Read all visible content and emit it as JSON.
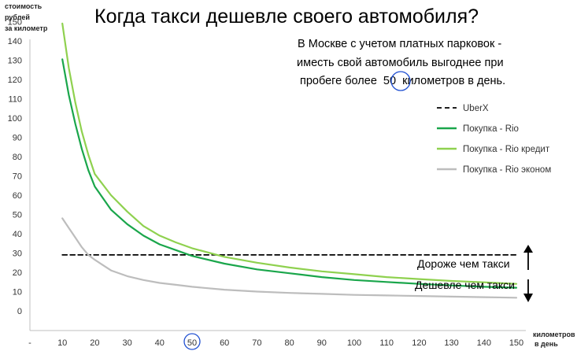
{
  "chart_data": {
    "type": "line",
    "title": "Когда такси дешевле своего автомобиля?",
    "annotation_lines": [
      "В Москве с учетом платных парковок -",
      "иместь свой автомобиль выгоднее при",
      "пробеге более",
      "50",
      "километров в день."
    ],
    "ylabel_lines": [
      "стоимость",
      "рублей",
      "за километр"
    ],
    "xlabel_lines": [
      "километров",
      "в день"
    ],
    "ylim": [
      0,
      150
    ],
    "y_ticks": [
      0,
      10,
      20,
      30,
      40,
      50,
      60,
      70,
      80,
      90,
      100,
      110,
      120,
      130,
      140,
      150
    ],
    "x_tick_labels": [
      "-",
      "10",
      "20",
      "30",
      "40",
      "50",
      "60",
      "70",
      "80",
      "90",
      "100",
      "110",
      "120",
      "130",
      "140",
      "150"
    ],
    "x_circled_tick": "50",
    "x": [
      10,
      12,
      14,
      16,
      18,
      20,
      25,
      30,
      35,
      40,
      45,
      50,
      60,
      70,
      80,
      90,
      100,
      110,
      120,
      130,
      140,
      150
    ],
    "series": [
      {
        "name": "UberX",
        "color": "#000000",
        "dash": "dashed",
        "values": [
          29,
          29,
          29,
          29,
          29,
          29,
          29,
          29,
          29,
          29,
          29,
          29,
          29,
          29,
          29,
          29,
          29,
          29,
          29,
          29,
          29,
          29
        ]
      },
      {
        "name": "Покупка - Rio",
        "color": "#1aa64b",
        "dash": "solid",
        "values": [
          130.5,
          112,
          97,
          84,
          73,
          64.5,
          52.5,
          45,
          39,
          34.5,
          31.5,
          28.5,
          24.5,
          21.5,
          19.5,
          17.5,
          16,
          15,
          14,
          13.2,
          12.5,
          12
        ]
      },
      {
        "name": "Покупка - Rio кредит",
        "color": "#8fd14f",
        "dash": "solid",
        "values": [
          149,
          126,
          108,
          93,
          81,
          71,
          60,
          51.5,
          44,
          39,
          35.5,
          32.5,
          28,
          25,
          22.5,
          20.5,
          19,
          17.5,
          16.5,
          15.5,
          14.8,
          14
        ]
      },
      {
        "name": "Покупка - Rio эконом",
        "color": "#bdbdbd",
        "dash": "solid",
        "values": [
          48,
          43,
          38,
          33,
          29,
          26.5,
          21,
          18,
          16,
          14.5,
          13.5,
          12.5,
          11,
          10,
          9.3,
          8.8,
          8.3,
          8,
          7.7,
          7.4,
          7.1,
          6.8
        ]
      }
    ],
    "zone_labels": {
      "above": "Дороже чем такси",
      "below": "Дешевле чем такси"
    },
    "legend_position": "right"
  }
}
